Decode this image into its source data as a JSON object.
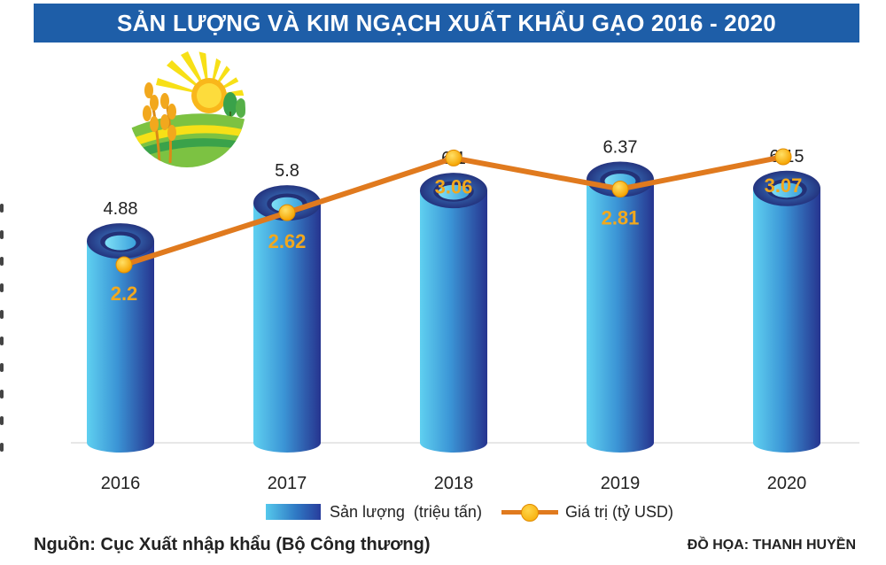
{
  "header": {
    "title": "SẢN LƯỢNG VÀ KIM NGẠCH XUẤT KHẨU GẠO 2016 - 2020"
  },
  "chart_data": {
    "type": "bar",
    "categories": [
      "2016",
      "2017",
      "2018",
      "2019",
      "2020"
    ],
    "series": [
      {
        "name": "Sản lượng  (triệu tấn)",
        "type": "bar",
        "values": [
          4.88,
          5.8,
          6.1,
          6.37,
          6.15
        ],
        "labels": [
          "4.88",
          "5.8",
          "6.1",
          "6.37",
          "6.15"
        ],
        "color": "#2f79c4"
      },
      {
        "name": "Giá trị (tỷ USD)",
        "type": "line",
        "values": [
          2.2,
          2.62,
          3.06,
          2.81,
          3.07
        ],
        "labels": [
          "2.2",
          "2.62",
          "3.06",
          "2.81",
          "3.07"
        ],
        "color": "#e07a1e",
        "marker_color": "#f6b400"
      }
    ],
    "title": "SẢN LƯỢNG VÀ KIM NGẠCH XUẤT KHẨU GẠO 2016 - 2020",
    "grid": false,
    "legend_position": "bottom-center"
  },
  "legend": {
    "bar_label": "Sản lượng  (triệu tấn)",
    "line_label": "Giá trị (tỷ USD)"
  },
  "footer": {
    "source": "Nguồn: Cục Xuất nhập khẩu (Bộ Công thương)",
    "credit": "ĐỒ HỌA: THANH HUYỀN"
  },
  "colors": {
    "title_bar": "#1e5ea8",
    "bar_light": "#55c8ec",
    "bar_dark": "#283d9c",
    "line": "#e07a1e",
    "line_label": "#f2a81d"
  },
  "icons": {
    "logo": "rice-sun-field-icon"
  }
}
